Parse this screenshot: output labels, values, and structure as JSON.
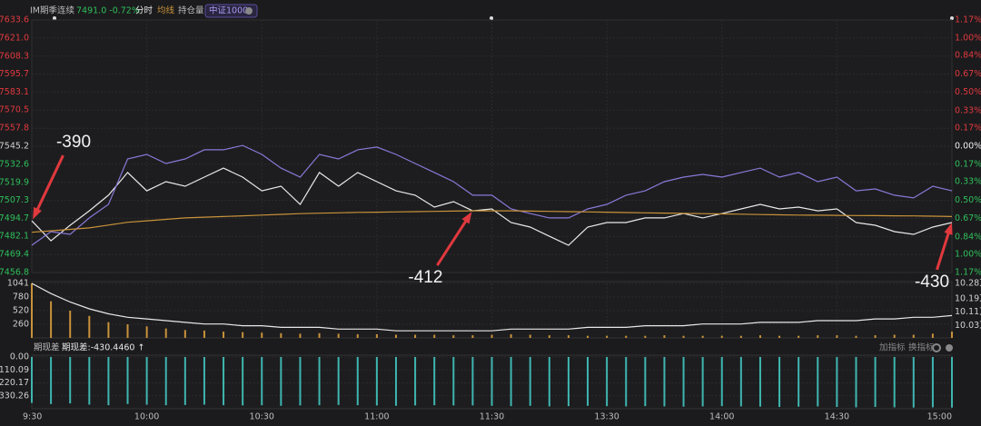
{
  "header": {
    "quote": "7491.0 -0.72%",
    "mode": "分时",
    "basis_info": "期现差:-430.4460 ↑",
    "add_indicator": "加指标",
    "switch_indicator": "换指标"
  },
  "chart_data": [
    {
      "type": "line",
      "x": [
        0,
        5,
        10,
        15,
        20,
        25,
        30,
        35,
        40,
        45,
        50,
        55,
        60,
        65,
        70,
        75,
        80,
        85,
        90,
        95,
        100,
        105,
        110,
        115,
        120,
        125,
        130,
        135,
        140,
        145,
        150,
        155,
        160,
        165,
        170,
        175,
        180,
        185,
        190,
        195,
        200,
        205,
        210,
        215,
        220,
        225,
        230,
        235,
        240
      ],
      "xlim": [
        0,
        240
      ],
      "xticks": [
        {
          "value": 0,
          "label": "9:30"
        },
        {
          "value": 30,
          "label": "10:00"
        },
        {
          "value": 60,
          "label": "10:30"
        },
        {
          "value": 90,
          "label": "11:00"
        },
        {
          "value": 120,
          "label": "11:30"
        },
        {
          "value": 150,
          "label": "13:30"
        },
        {
          "value": 180,
          "label": "14:00"
        },
        {
          "value": 210,
          "label": "14:30"
        },
        {
          "value": 240,
          "label": "15:00"
        }
      ],
      "ylim": [
        7456.8,
        7633.6
      ],
      "yticks": [
        7633.6,
        {
          "value": 7621,
          "label": "7621.0"
        },
        7608.3,
        7595.7,
        7583.1,
        7570.5,
        7557.8,
        7545.2,
        7532.6,
        7519.9,
        7507.3,
        7494.7,
        7482.1,
        7469.4,
        7456.8
      ],
      "y2lim": [
        -1.17,
        1.17
      ],
      "y2ticks": [
        {
          "value": 1.17,
          "label": "1.17%"
        },
        {
          "value": 1,
          "label": "1.00%"
        },
        {
          "value": 0.84,
          "label": "0.84%"
        },
        {
          "value": 0.67,
          "label": "0.67%"
        },
        {
          "value": 0.5,
          "label": "0.50%"
        },
        {
          "value": 0.33,
          "label": "0.33%"
        },
        {
          "value": 0.17,
          "label": "0.17%"
        },
        {
          "value": 0,
          "label": "0.00%"
        },
        {
          "value": -0.17,
          "label": "0.17%"
        },
        {
          "value": -0.33,
          "label": "0.33%"
        },
        {
          "value": -0.5,
          "label": "0.50%"
        },
        {
          "value": -0.67,
          "label": "0.67%"
        },
        {
          "value": -0.84,
          "label": "0.84%"
        },
        {
          "value": -1,
          "label": "1.00%"
        },
        {
          "value": -1.17,
          "label": "1.17%"
        }
      ],
      "grid": true,
      "series": [
        {
          "name": "IM期季连续",
          "color": "#e8e8e8",
          "values": [
            7493.0,
            7479.0,
            7489.9,
            7500.0,
            7510.9,
            7526.8,
            7514.0,
            7520.4,
            7517.2,
            7523.6,
            7529.9,
            7523.6,
            7514.0,
            7517.2,
            7504.5,
            7526.8,
            7517.2,
            7526.8,
            7520.4,
            7514.0,
            7510.9,
            7502.6,
            7506.4,
            7500.0,
            7501.3,
            7491.8,
            7488.6,
            7482.2,
            7475.9,
            7488.6,
            7491.8,
            7491.8,
            7495.0,
            7495.0,
            7498.1,
            7495.0,
            7498.1,
            7501.3,
            7504.5,
            7501.3,
            7502.6,
            7500.0,
            7501.3,
            7491.8,
            7489.9,
            7485.4,
            7483.5,
            7488.6,
            7491.8
          ]
        },
        {
          "name": "中证1000",
          "color": "#8a78d8",
          "values": [
            7475.9,
            7485.4,
            7483.5,
            7495.0,
            7504.5,
            7536.3,
            7539.5,
            7533.1,
            7536.3,
            7542.7,
            7542.7,
            7545.8,
            7539.5,
            7529.9,
            7523.6,
            7539.5,
            7536.3,
            7542.7,
            7544.6,
            7539.5,
            7533.1,
            7526.8,
            7520.4,
            7510.9,
            7510.9,
            7501.3,
            7498.1,
            7495.0,
            7495.0,
            7501.3,
            7504.5,
            7510.9,
            7514.0,
            7520.4,
            7523.6,
            7525.5,
            7523.6,
            7526.8,
            7529.9,
            7523.6,
            7526.8,
            7520.4,
            7523.6,
            7514.0,
            7515.3,
            7510.9,
            7509.0,
            7517.2,
            7514.0
          ]
        },
        {
          "name": "均线",
          "color": "#c8923a",
          "values": [
            7485,
            7486,
            7487,
            7488,
            7490,
            7492,
            7493,
            7494,
            7495,
            7495.5,
            7496,
            7496.5,
            7497,
            7497.5,
            7498,
            7498.3,
            7498.6,
            7498.9,
            7499,
            7499.2,
            7499.4,
            7499.6,
            7499.8,
            7500,
            7500,
            7500,
            7499.8,
            7499.6,
            7499.4,
            7499.2,
            7499,
            7498.8,
            7498.6,
            7498.4,
            7498.2,
            7498,
            7497.8,
            7497.6,
            7497.4,
            7497.2,
            7497,
            7496.9,
            7496.8,
            7496.7,
            7496.6,
            7496.5,
            7496.4,
            7496.2,
            7496
          ]
        }
      ],
      "annotations": [
        {
          "text": "-390",
          "x": 0
        },
        {
          "text": "-412",
          "x": 115
        },
        {
          "text": "-430",
          "x": 240
        }
      ]
    },
    {
      "type": "bar",
      "ylim": [
        0,
        1041
      ],
      "yticks": [
        1041,
        780,
        520,
        260
      ],
      "y2lim": [
        9.958,
        10.28
      ],
      "y2ticks": [
        {
          "value": 10.28,
          "label": "10.28万"
        },
        {
          "value": 10.19,
          "label": "10.19万"
        },
        {
          "value": 10.11,
          "label": "10.11万"
        },
        {
          "value": 10.03,
          "label": "10.03万"
        }
      ],
      "grid": true,
      "series": [
        {
          "color": "#c8923a",
          "values": [
            1041,
            700,
            520,
            420,
            300,
            260,
            220,
            180,
            150,
            140,
            120,
            110,
            100,
            90,
            80,
            90,
            80,
            70,
            70,
            60,
            60,
            60,
            50,
            50,
            60,
            70,
            60,
            50,
            50,
            40,
            40,
            40,
            40,
            50,
            40,
            40,
            40,
            40,
            50,
            40,
            40,
            50,
            50,
            40,
            50,
            60,
            60,
            80,
            120
          ]
        },
        {
          "name": "持仓量",
          "type": "line",
          "axis": "y2",
          "color": "#e8e8e8",
          "values": [
            10.28,
            10.22,
            10.17,
            10.13,
            10.1,
            10.08,
            10.07,
            10.06,
            10.05,
            10.04,
            10.04,
            10.03,
            10.03,
            10.02,
            10.02,
            10.02,
            10.01,
            10.01,
            10.01,
            10.0,
            10.0,
            10.0,
            10.0,
            10.0,
            10.0,
            10.01,
            10.01,
            10.01,
            10.01,
            10.02,
            10.02,
            10.02,
            10.03,
            10.03,
            10.03,
            10.04,
            10.04,
            10.04,
            10.05,
            10.05,
            10.05,
            10.06,
            10.06,
            10.06,
            10.07,
            10.07,
            10.08,
            10.08,
            10.09
          ]
        }
      ]
    },
    {
      "type": "bar",
      "ylim": [
        -440,
        0
      ],
      "yticks": [
        {
          "value": 0,
          "label": "0.00"
        },
        -110.09,
        -220.17,
        -330.26
      ],
      "grid": true,
      "series": [
        {
          "name": "期现差",
          "color": "#3fb5b0",
          "values": [
            -390,
            -400,
            -395,
            -405,
            -410,
            -400,
            -405,
            -410,
            -408,
            -405,
            -410,
            -412,
            -410,
            -415,
            -412,
            -410,
            -408,
            -410,
            -412,
            -415,
            -412,
            -410,
            -412,
            -412,
            -415,
            -418,
            -415,
            -420,
            -418,
            -415,
            -418,
            -420,
            -418,
            -420,
            -422,
            -420,
            -418,
            -420,
            -422,
            -425,
            -422,
            -420,
            -425,
            -428,
            -425,
            -428,
            -430,
            -428,
            -430
          ]
        }
      ]
    }
  ]
}
